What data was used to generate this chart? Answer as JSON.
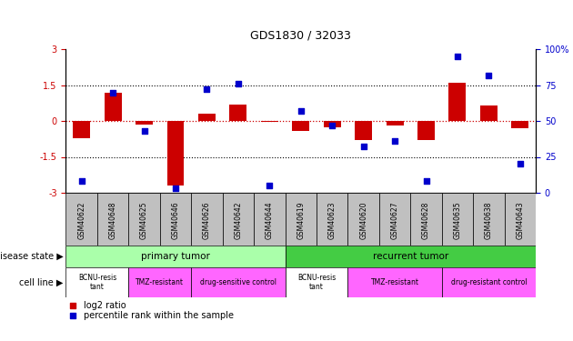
{
  "title": "GDS1830 / 32033",
  "samples": [
    "GSM40622",
    "GSM40648",
    "GSM40625",
    "GSM40646",
    "GSM40626",
    "GSM40642",
    "GSM40644",
    "GSM40619",
    "GSM40623",
    "GSM40620",
    "GSM40627",
    "GSM40628",
    "GSM40635",
    "GSM40638",
    "GSM40643"
  ],
  "log2_ratio": [
    -0.7,
    1.2,
    -0.15,
    -2.7,
    0.3,
    0.7,
    -0.05,
    -0.4,
    -0.25,
    -0.8,
    -0.2,
    -0.8,
    1.6,
    0.65,
    -0.3
  ],
  "percentile_rank": [
    8,
    70,
    43,
    3,
    72,
    76,
    5,
    57,
    47,
    32,
    36,
    8,
    95,
    82,
    20
  ],
  "ylim_left": [
    -3,
    3
  ],
  "ylim_right": [
    0,
    100
  ],
  "bar_color": "#CC0000",
  "dot_color": "#0000CC",
  "tick_color_left": "#CC0000",
  "tick_color_right": "#0000CC",
  "zero_line_color": "#CC0000",
  "sample_bg_color": "#C0C0C0",
  "disease_state_groups": [
    {
      "label": "primary tumor",
      "start": 0,
      "end": 7,
      "color": "#AAFFAA"
    },
    {
      "label": "recurrent tumor",
      "start": 7,
      "end": 15,
      "color": "#44CC44"
    }
  ],
  "cell_line_groups": [
    {
      "label": "BCNU-resis\ntant",
      "start": 0,
      "end": 2,
      "color": "#FFFFFF"
    },
    {
      "label": "TMZ-resistant",
      "start": 2,
      "end": 4,
      "color": "#FF66FF"
    },
    {
      "label": "drug-sensitive control",
      "start": 4,
      "end": 7,
      "color": "#FF66FF"
    },
    {
      "label": "BCNU-resis\ntant",
      "start": 7,
      "end": 9,
      "color": "#FFFFFF"
    },
    {
      "label": "TMZ-resistant",
      "start": 9,
      "end": 12,
      "color": "#FF66FF"
    },
    {
      "label": "drug-resistant control",
      "start": 12,
      "end": 15,
      "color": "#FF66FF"
    }
  ]
}
